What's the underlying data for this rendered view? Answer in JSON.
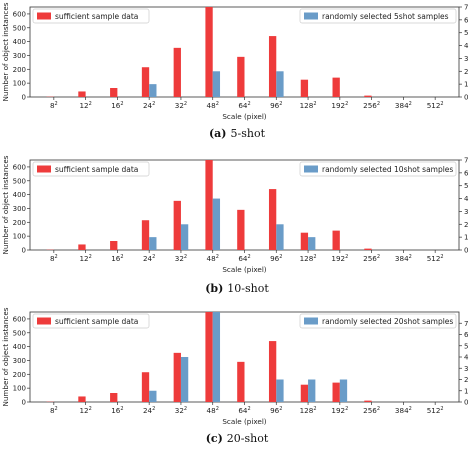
{
  "chart_data": [
    {
      "type": "bar",
      "caption_letter": "(a)",
      "caption_text": "5-shot",
      "xlabel": "Scale (pixel)",
      "ylabel": "Number of object instances",
      "categories": [
        {
          "base": "8",
          "exp": "2"
        },
        {
          "base": "12",
          "exp": "2"
        },
        {
          "base": "16",
          "exp": "2"
        },
        {
          "base": "24",
          "exp": "2"
        },
        {
          "base": "32",
          "exp": "2"
        },
        {
          "base": "48",
          "exp": "2"
        },
        {
          "base": "64",
          "exp": "2"
        },
        {
          "base": "96",
          "exp": "2"
        },
        {
          "base": "128",
          "exp": "2"
        },
        {
          "base": "192",
          "exp": "2"
        },
        {
          "base": "256",
          "exp": "2"
        },
        {
          "base": "384",
          "exp": "2"
        },
        {
          "base": "512",
          "exp": "2"
        }
      ],
      "left_yticks": [
        0,
        100,
        200,
        300,
        400,
        500,
        600
      ],
      "right_yticks": [
        0,
        1,
        2,
        3,
        4,
        5,
        6,
        7
      ],
      "left_ylim": [
        0,
        650
      ],
      "right_ylim": [
        0,
        7
      ],
      "series": [
        {
          "name": "sufficient sample data",
          "axis": "left",
          "color": "#ee3b3b",
          "values": [
            2,
            40,
            65,
            215,
            355,
            650,
            290,
            440,
            125,
            140,
            10,
            0,
            0
          ]
        },
        {
          "name": "randomly selected 5shot samples",
          "axis": "right",
          "color": "#6a9cc8",
          "values": [
            0,
            0,
            0,
            1,
            0,
            2,
            0,
            2,
            0,
            0,
            0,
            0,
            0
          ]
        }
      ],
      "legend": [
        "top-left",
        "top-right"
      ]
    },
    {
      "type": "bar",
      "caption_letter": "(b)",
      "caption_text": "10-shot",
      "xlabel": "Scale (pixel)",
      "ylabel": "Number of object instances",
      "categories": [
        {
          "base": "8",
          "exp": "2"
        },
        {
          "base": "12",
          "exp": "2"
        },
        {
          "base": "16",
          "exp": "2"
        },
        {
          "base": "24",
          "exp": "2"
        },
        {
          "base": "32",
          "exp": "2"
        },
        {
          "base": "48",
          "exp": "2"
        },
        {
          "base": "64",
          "exp": "2"
        },
        {
          "base": "96",
          "exp": "2"
        },
        {
          "base": "128",
          "exp": "2"
        },
        {
          "base": "192",
          "exp": "2"
        },
        {
          "base": "256",
          "exp": "2"
        },
        {
          "base": "384",
          "exp": "2"
        },
        {
          "base": "512",
          "exp": "2"
        }
      ],
      "left_yticks": [
        0,
        100,
        200,
        300,
        400,
        500,
        600
      ],
      "right_yticks": [
        0,
        1,
        2,
        3,
        4,
        5,
        6,
        7
      ],
      "left_ylim": [
        0,
        650
      ],
      "right_ylim": [
        0,
        7
      ],
      "series": [
        {
          "name": "sufficient sample data",
          "axis": "left",
          "color": "#ee3b3b",
          "values": [
            2,
            40,
            65,
            215,
            355,
            650,
            290,
            440,
            125,
            140,
            10,
            0,
            0
          ]
        },
        {
          "name": "randomly selected 10shot samples",
          "axis": "right",
          "color": "#6a9cc8",
          "values": [
            0,
            0,
            0,
            1,
            2,
            4,
            0,
            2,
            1,
            0,
            0,
            0,
            0
          ]
        }
      ],
      "legend": [
        "top-left",
        "top-right"
      ]
    },
    {
      "type": "bar",
      "caption_letter": "(c)",
      "caption_text": "20-shot",
      "xlabel": "Scale (pixel)",
      "ylabel": "Number of object instances",
      "categories": [
        {
          "base": "8",
          "exp": "2"
        },
        {
          "base": "12",
          "exp": "2"
        },
        {
          "base": "16",
          "exp": "2"
        },
        {
          "base": "24",
          "exp": "2"
        },
        {
          "base": "32",
          "exp": "2"
        },
        {
          "base": "48",
          "exp": "2"
        },
        {
          "base": "64",
          "exp": "2"
        },
        {
          "base": "96",
          "exp": "2"
        },
        {
          "base": "128",
          "exp": "2"
        },
        {
          "base": "192",
          "exp": "2"
        },
        {
          "base": "256",
          "exp": "2"
        },
        {
          "base": "384",
          "exp": "2"
        },
        {
          "base": "512",
          "exp": "2"
        }
      ],
      "left_yticks": [
        0,
        100,
        200,
        300,
        400,
        500,
        600
      ],
      "right_yticks": [
        0,
        1,
        2,
        3,
        4,
        5,
        6,
        7
      ],
      "left_ylim": [
        0,
        650
      ],
      "right_ylim": [
        0,
        8
      ],
      "series": [
        {
          "name": "sufficient sample data",
          "axis": "left",
          "color": "#ee3b3b",
          "values": [
            2,
            40,
            65,
            215,
            355,
            650,
            290,
            440,
            125,
            140,
            10,
            0,
            0
          ]
        },
        {
          "name": "randomly selected 20shot samples",
          "axis": "right",
          "color": "#6a9cc8",
          "values": [
            0,
            0,
            0,
            1,
            4,
            8,
            0,
            2,
            2,
            2,
            0,
            0,
            0
          ]
        }
      ],
      "legend": [
        "top-left",
        "top-right"
      ]
    }
  ]
}
